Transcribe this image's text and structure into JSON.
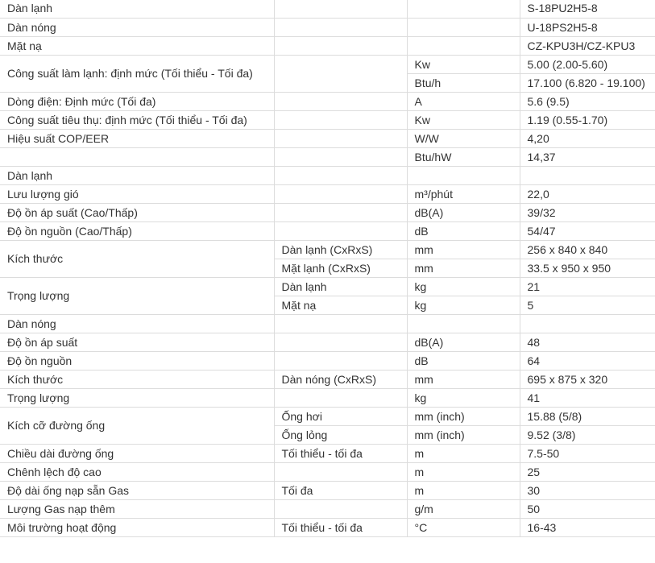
{
  "spec_table": {
    "rows": [
      [
        {
          "t": "Dàn lạnh"
        },
        {
          "t": ""
        },
        {
          "t": ""
        },
        {
          "t": "S-18PU2H5-8"
        }
      ],
      [
        {
          "t": "Dàn nóng"
        },
        {
          "t": ""
        },
        {
          "t": ""
        },
        {
          "t": "U-18PS2H5-8"
        }
      ],
      [
        {
          "t": "Mặt nạ"
        },
        {
          "t": ""
        },
        {
          "t": ""
        },
        {
          "t": "CZ-KPU3H/CZ-KPU3"
        }
      ],
      [
        {
          "t": "Công suất làm lạnh: định mức (Tối thiểu - Tối đa)",
          "rs": 2
        },
        {
          "t": "",
          "rs": 2
        },
        {
          "t": "Kw"
        },
        {
          "t": "5.00 (2.00-5.60)"
        }
      ],
      [
        {
          "t": "Btu/h"
        },
        {
          "t": "17.100 (6.820 - 19.100)"
        }
      ],
      [
        {
          "t": "Dòng điện: Định mức (Tối đa)"
        },
        {
          "t": ""
        },
        {
          "t": "A"
        },
        {
          "t": "5.6 (9.5)"
        }
      ],
      [
        {
          "t": "Công suất tiêu thụ: định mức (Tối thiểu - Tối đa)"
        },
        {
          "t": ""
        },
        {
          "t": "Kw"
        },
        {
          "t": "1.19 (0.55-1.70)"
        }
      ],
      [
        {
          "t": "Hiệu suất COP/EER"
        },
        {
          "t": ""
        },
        {
          "t": "W/W"
        },
        {
          "t": "4,20"
        }
      ],
      [
        {
          "t": ""
        },
        {
          "t": ""
        },
        {
          "t": "Btu/hW"
        },
        {
          "t": "14,37"
        }
      ],
      [
        {
          "t": "Dàn lạnh"
        },
        {
          "t": ""
        },
        {
          "t": ""
        },
        {
          "t": ""
        }
      ],
      [
        {
          "t": "Lưu lượng gió"
        },
        {
          "t": ""
        },
        {
          "t": "m³/phút"
        },
        {
          "t": "22,0"
        }
      ],
      [
        {
          "t": "Độ ồn áp suất (Cao/Thấp)"
        },
        {
          "t": ""
        },
        {
          "t": "dB(A)"
        },
        {
          "t": "39/32"
        }
      ],
      [
        {
          "t": "Độ ồn nguồn (Cao/Thấp)"
        },
        {
          "t": ""
        },
        {
          "t": "dB"
        },
        {
          "t": "54/47"
        }
      ],
      [
        {
          "t": "Kích thước",
          "rs": 2
        },
        {
          "t": "Dàn lạnh (CxRxS)"
        },
        {
          "t": "mm"
        },
        {
          "t": "256 x 840 x 840"
        }
      ],
      [
        {
          "t": "Mặt lạnh (CxRxS)"
        },
        {
          "t": "mm"
        },
        {
          "t": "33.5 x 950 x 950"
        }
      ],
      [
        {
          "t": "Trọng lượng",
          "rs": 2
        },
        {
          "t": "Dàn lạnh"
        },
        {
          "t": "kg"
        },
        {
          "t": "21"
        }
      ],
      [
        {
          "t": "Mặt nạ"
        },
        {
          "t": "kg"
        },
        {
          "t": "5"
        }
      ],
      [
        {
          "t": "Dàn nóng"
        },
        {
          "t": ""
        },
        {
          "t": ""
        },
        {
          "t": ""
        }
      ],
      [
        {
          "t": "Độ ồn áp suất"
        },
        {
          "t": ""
        },
        {
          "t": "dB(A)"
        },
        {
          "t": "48"
        }
      ],
      [
        {
          "t": "Độ ồn nguồn"
        },
        {
          "t": ""
        },
        {
          "t": "dB"
        },
        {
          "t": "64"
        }
      ],
      [
        {
          "t": "Kích thước"
        },
        {
          "t": "Dàn nóng (CxRxS)"
        },
        {
          "t": "mm"
        },
        {
          "t": "695 x 875 x 320"
        }
      ],
      [
        {
          "t": "Trọng lượng"
        },
        {
          "t": ""
        },
        {
          "t": "kg"
        },
        {
          "t": "41"
        }
      ],
      [
        {
          "t": "Kích cỡ đường ống",
          "rs": 2
        },
        {
          "t": "Ống hơi"
        },
        {
          "t": "mm (inch)"
        },
        {
          "t": "15.88 (5/8)"
        }
      ],
      [
        {
          "t": "Ống lỏng"
        },
        {
          "t": "mm (inch)"
        },
        {
          "t": "9.52 (3/8)"
        }
      ],
      [
        {
          "t": "Chiều dài đường ống"
        },
        {
          "t": "Tối thiểu - tối đa"
        },
        {
          "t": "m"
        },
        {
          "t": "7.5-50"
        }
      ],
      [
        {
          "t": "Chênh lệch độ cao"
        },
        {
          "t": ""
        },
        {
          "t": "m"
        },
        {
          "t": "25"
        }
      ],
      [
        {
          "t": "Độ dài ống nạp sẵn Gas"
        },
        {
          "t": "Tối đa"
        },
        {
          "t": "m"
        },
        {
          "t": "30"
        }
      ],
      [
        {
          "t": "Lượng Gas nạp thêm"
        },
        {
          "t": ""
        },
        {
          "t": "g/m"
        },
        {
          "t": "50"
        }
      ],
      [
        {
          "t": "Môi trường hoạt động"
        },
        {
          "t": "Tối thiểu - tối đa"
        },
        {
          "t": "°C"
        },
        {
          "t": "16-43"
        }
      ]
    ]
  }
}
